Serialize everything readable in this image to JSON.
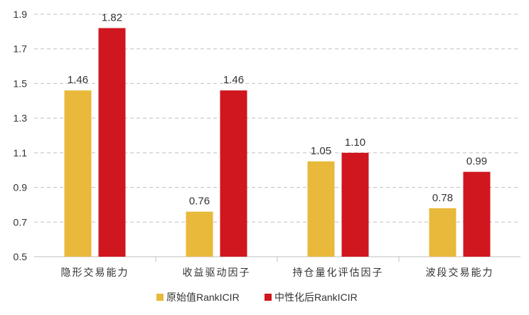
{
  "chart_data": {
    "type": "bar",
    "title": "",
    "xlabel": "",
    "ylabel": "",
    "categories": [
      "隐形交易能力",
      "收益驱动因子",
      "持仓量化评估因子",
      "波段交易能力"
    ],
    "series": [
      {
        "name": "原始值RankICIR",
        "color": "#E8B93A",
        "values": [
          1.46,
          0.76,
          1.05,
          0.78
        ],
        "labels": [
          "1.46",
          "0.76",
          "1.05",
          "0.78"
        ]
      },
      {
        "name": "中性化后RankICIR",
        "color": "#D0161E",
        "values": [
          1.82,
          1.46,
          1.1,
          0.99
        ],
        "labels": [
          "1.82",
          "1.46",
          "1.10",
          "0.99"
        ]
      }
    ],
    "ylim": [
      0.5,
      1.9
    ],
    "yticks": [
      0.5,
      0.7,
      0.9,
      1.1,
      1.3,
      1.5,
      1.7,
      1.9
    ],
    "ytick_labels": [
      "0.5",
      "0.7",
      "0.9",
      "1.1",
      "1.3",
      "1.5",
      "1.7",
      "1.9"
    ],
    "grid": true,
    "legend_position": "bottom-center"
  }
}
